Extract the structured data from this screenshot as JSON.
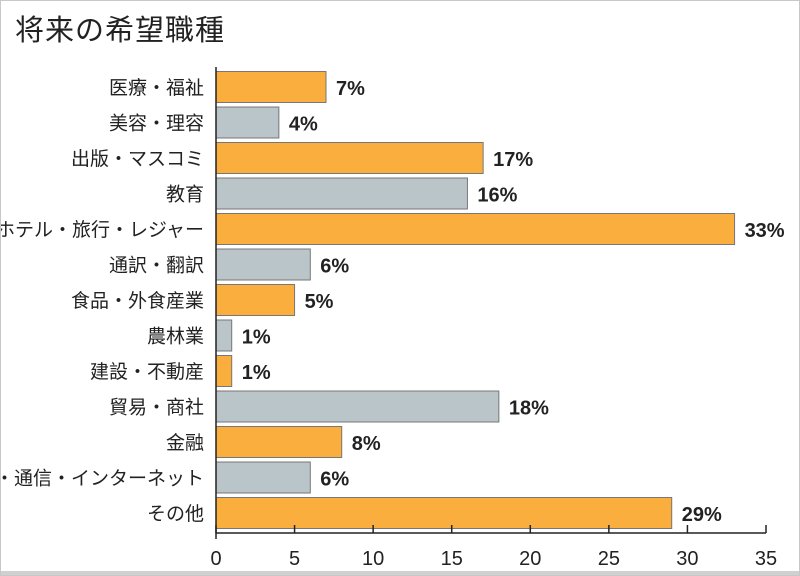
{
  "chart_data": {
    "type": "bar",
    "orientation": "horizontal",
    "title": "将来の希望職種",
    "categories": [
      "医療・福祉",
      "美容・理容",
      "出版・マスコミ",
      "教育",
      "ホテル・旅行・レジャー",
      "通訳・翻訳",
      "食品・外食産業",
      "農林業",
      "建設・不動産",
      "貿易・商社",
      "金融",
      "IT・通信・インターネット",
      "その他"
    ],
    "values": [
      7,
      4,
      17,
      16,
      33,
      6,
      5,
      1,
      1,
      18,
      8,
      6,
      29
    ],
    "value_labels": [
      "7%",
      "4%",
      "17%",
      "16%",
      "33%",
      "6%",
      "5%",
      "1%",
      "1%",
      "18%",
      "8%",
      "6%",
      "29%"
    ],
    "colors": [
      "#f9ae3e",
      "#b9c5c9"
    ],
    "xlim": [
      0,
      35
    ],
    "xticks": [
      0,
      5,
      10,
      15,
      20,
      25,
      30,
      35
    ],
    "grid": false,
    "xlabel": "",
    "ylabel": ""
  }
}
